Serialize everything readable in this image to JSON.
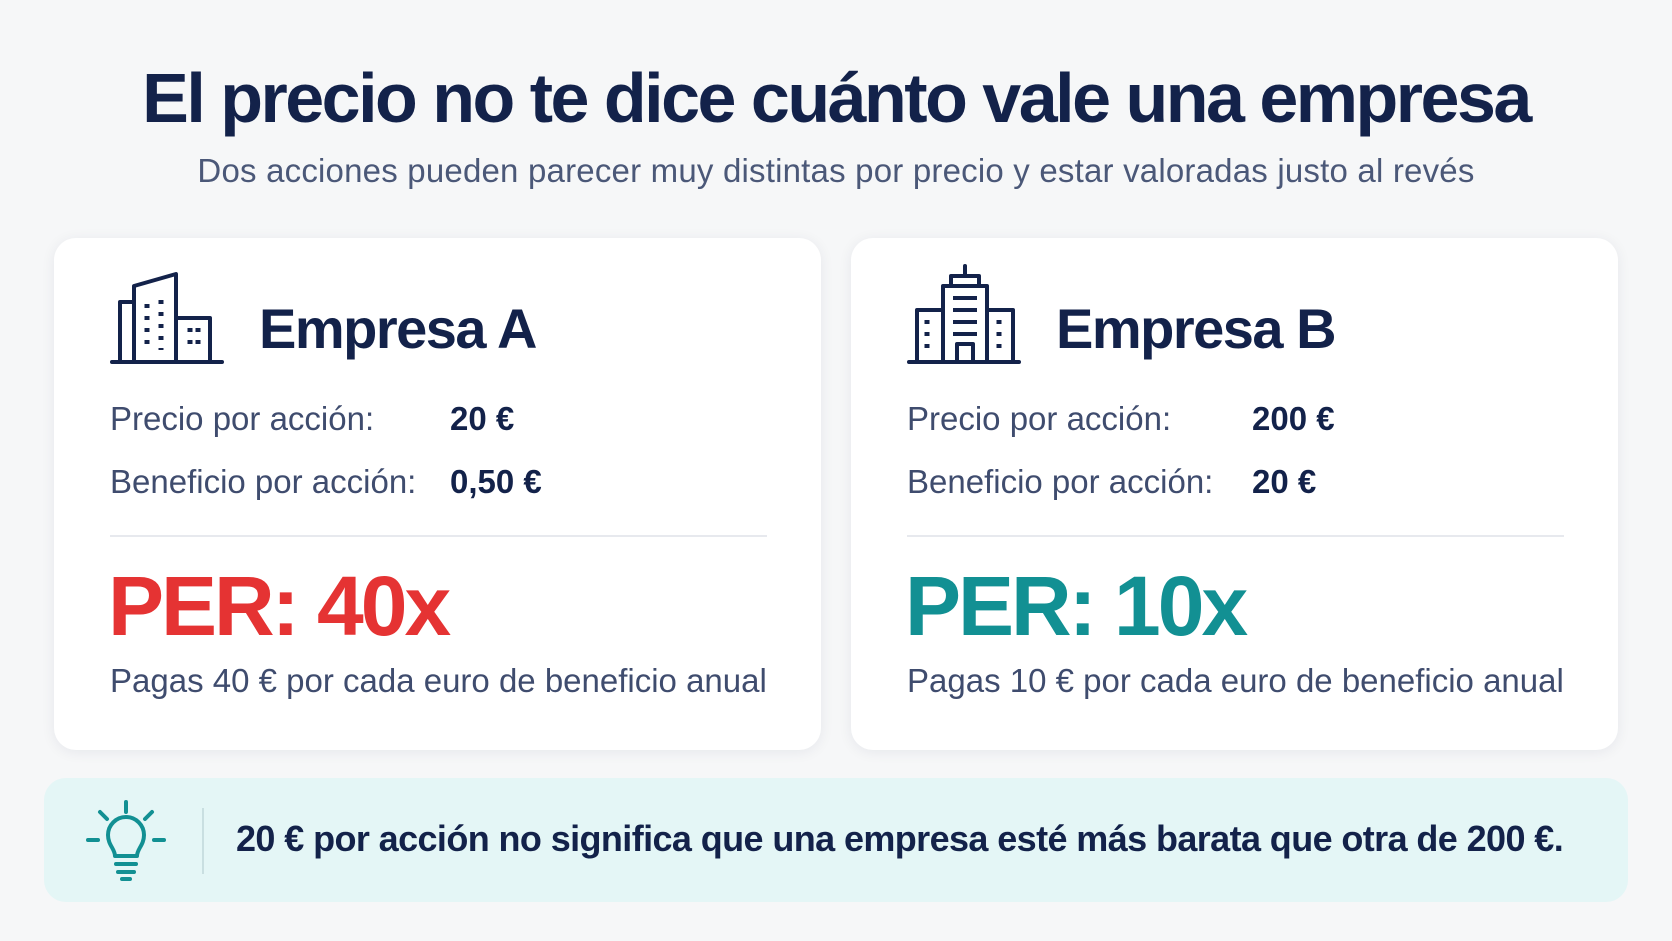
{
  "header": {
    "title": "El precio no te dice cuánto vale una empresa",
    "subtitle": "Dos acciones pueden parecer muy distintas por precio y estar valoradas justo al revés"
  },
  "companies": [
    {
      "name": "Empresa A",
      "icon": "office-building-icon",
      "price_label": "Precio por acción:",
      "price_value": "20 €",
      "eps_label": "Beneficio por acción:",
      "eps_value": "0,50 €",
      "per": "PER: 40x",
      "per_color": "#e53333",
      "note": "Pagas 40 € por cada euro de beneficio anual"
    },
    {
      "name": "Empresa B",
      "icon": "tower-building-icon",
      "price_label": "Precio por acción:",
      "price_value": "200 €",
      "eps_label": "Beneficio por acción:",
      "eps_value": "20 €",
      "per": "PER: 10x",
      "per_color": "#129093",
      "note": "Pagas 10 € por cada euro de beneficio anual"
    }
  ],
  "tip": {
    "icon": "lightbulb-icon",
    "text": "20 € por acción no significa que una empresa esté más barata que otra de 200 €."
  },
  "colors": {
    "navy": "#13224a",
    "red": "#e53333",
    "teal": "#129093",
    "tip_background": "#e4f6f6"
  }
}
